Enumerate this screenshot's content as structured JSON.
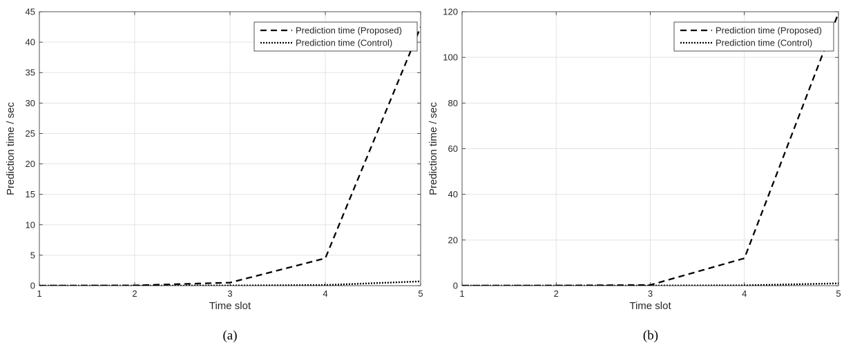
{
  "chart_data": [
    {
      "type": "line",
      "caption": "(a)",
      "xlabel": "Time slot",
      "ylabel": "Prediction time / sec",
      "x": [
        1,
        2,
        3,
        4,
        5
      ],
      "xlim": [
        1,
        5
      ],
      "ylim": [
        0,
        45
      ],
      "xticks": [
        1,
        2,
        3,
        4,
        5
      ],
      "yticks": [
        0,
        5,
        10,
        15,
        20,
        25,
        30,
        35,
        40,
        45
      ],
      "grid": true,
      "legend_position": "top-right",
      "series": [
        {
          "name": "Prediction time (Proposed)",
          "style": "dashed",
          "color": "#000000",
          "values": [
            0.0,
            0.05,
            0.5,
            4.5,
            42.5
          ]
        },
        {
          "name": "Prediction time (Control)",
          "style": "dotted",
          "color": "#000000",
          "values": [
            0.0,
            0.0,
            0.02,
            0.1,
            0.7
          ]
        }
      ]
    },
    {
      "type": "line",
      "caption": "(b)",
      "xlabel": "Time slot",
      "ylabel": "Prediction time / sec",
      "x": [
        1,
        2,
        3,
        4,
        5
      ],
      "xlim": [
        1,
        5
      ],
      "ylim": [
        0,
        120
      ],
      "xticks": [
        1,
        2,
        3,
        4,
        5
      ],
      "yticks": [
        0,
        20,
        40,
        60,
        80,
        100,
        120
      ],
      "grid": true,
      "legend_position": "top-right",
      "series": [
        {
          "name": "Prediction time (Proposed)",
          "style": "dashed",
          "color": "#000000",
          "values": [
            0.0,
            0.05,
            0.3,
            12.0,
            119.5
          ]
        },
        {
          "name": "Prediction time (Control)",
          "style": "dotted",
          "color": "#000000",
          "values": [
            0.0,
            0.0,
            0.02,
            0.15,
            1.0
          ]
        }
      ]
    }
  ]
}
